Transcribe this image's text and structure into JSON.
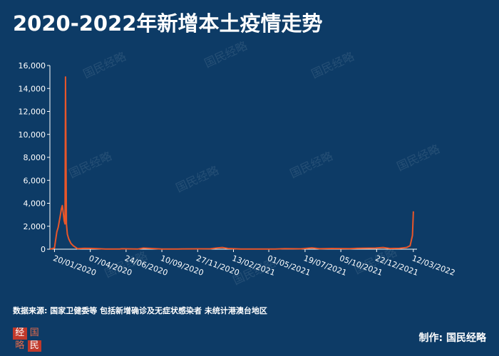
{
  "title": "2020-2022年新增本土疫情走势",
  "source_note": "数据来源: 国家卫健委等 包括新增确诊及无症状感染者 未统计港澳台地区",
  "credit": "制作: 国民经略",
  "logo": {
    "chars": [
      "经",
      "国",
      "略",
      "民"
    ]
  },
  "watermark_text": "国民经略",
  "colors": {
    "background": "#0d3b66",
    "line": "#e8562a",
    "axis": "#ffffff",
    "text": "#ffffff"
  },
  "chart_data": {
    "type": "line",
    "title": "2020-2022年新增本土疫情走势",
    "xlabel": "",
    "ylabel": "",
    "ylim": [
      0,
      16000
    ],
    "yticks": [
      0,
      2000,
      4000,
      6000,
      8000,
      10000,
      12000,
      14000,
      16000
    ],
    "ytick_labels": [
      "0",
      "2,000",
      "4,000",
      "6,000",
      "8,000",
      "10,000",
      "12,000",
      "14,000",
      "16,000"
    ],
    "xlim": [
      "2020-01-10",
      "2022-03-20"
    ],
    "xtick_labels": [
      "20/01/2020",
      "07/04/2020",
      "24/06/2020",
      "10/09/2020",
      "27/11/2020",
      "13/02/2021",
      "01/05/2021",
      "19/07/2021",
      "05/10/2021",
      "22/12/2021",
      "12/03/2022"
    ],
    "xtick_dates": [
      "2020-01-20",
      "2020-04-07",
      "2020-06-24",
      "2020-09-10",
      "2020-11-27",
      "2021-02-13",
      "2021-05-01",
      "2021-07-19",
      "2021-10-05",
      "2021-12-22",
      "2022-03-12"
    ],
    "grid": false,
    "series": [
      {
        "x": [
          "2020-01-10",
          "2020-01-20",
          "2020-01-25",
          "2020-01-28",
          "2020-02-01",
          "2020-02-04",
          "2020-02-06",
          "2020-02-08",
          "2020-02-10",
          "2020-02-12",
          "2020-02-13",
          "2020-02-15",
          "2020-02-17",
          "2020-02-20",
          "2020-02-25",
          "2020-03-01",
          "2020-03-10",
          "2020-03-25",
          "2020-04-15",
          "2020-05-10",
          "2020-06-10",
          "2020-06-15",
          "2020-06-25",
          "2020-07-20",
          "2020-08-01",
          "2020-09-10",
          "2020-10-15",
          "2020-11-27",
          "2020-12-25",
          "2021-01-10",
          "2021-01-20",
          "2021-02-01",
          "2021-03-01",
          "2021-04-10",
          "2021-05-15",
          "2021-06-05",
          "2021-07-10",
          "2021-08-03",
          "2021-08-20",
          "2021-09-15",
          "2021-10-25",
          "2021-11-10",
          "2021-12-20",
          "2022-01-05",
          "2022-01-20",
          "2022-02-10",
          "2022-02-25",
          "2022-03-05",
          "2022-03-10",
          "2022-03-12"
        ],
        "y": [
          0,
          100,
          1500,
          1900,
          2800,
          3500,
          3800,
          3200,
          2500,
          2200,
          15000,
          2200,
          1300,
          900,
          500,
          300,
          50,
          80,
          60,
          20,
          10,
          40,
          30,
          20,
          100,
          10,
          20,
          30,
          40,
          120,
          150,
          60,
          10,
          20,
          20,
          50,
          30,
          120,
          40,
          60,
          50,
          80,
          100,
          150,
          60,
          80,
          150,
          300,
          1200,
          3300
        ]
      }
    ]
  }
}
